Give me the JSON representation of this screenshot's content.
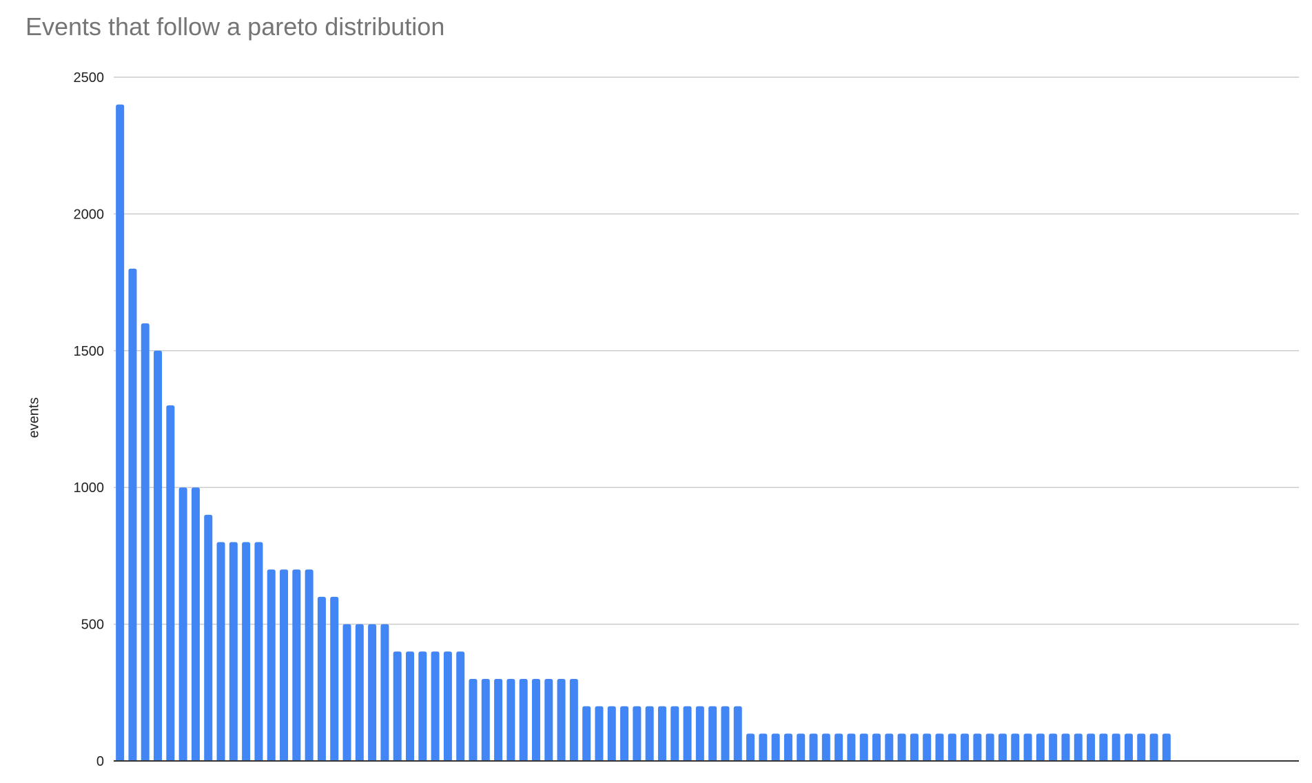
{
  "chart_data": {
    "type": "bar",
    "title": "Events that follow a pareto distribution",
    "xlabel": "",
    "ylabel": "events",
    "ylim": [
      0,
      2500
    ],
    "yticks": [
      "0",
      "500",
      "1000",
      "1500",
      "2000",
      "2500"
    ],
    "grid": true,
    "legend": "none",
    "bar_color": "#4285f4",
    "values": [
      2400,
      1800,
      1600,
      1500,
      1300,
      1000,
      1000,
      900,
      800,
      800,
      800,
      800,
      700,
      700,
      700,
      700,
      600,
      600,
      500,
      500,
      500,
      500,
      400,
      400,
      400,
      400,
      400,
      400,
      300,
      300,
      300,
      300,
      300,
      300,
      300,
      300,
      300,
      200,
      200,
      200,
      200,
      200,
      200,
      200,
      200,
      200,
      200,
      200,
      200,
      200,
      100,
      100,
      100,
      100,
      100,
      100,
      100,
      100,
      100,
      100,
      100,
      100,
      100,
      100,
      100,
      100,
      100,
      100,
      100,
      100,
      100,
      100,
      100,
      100,
      100,
      100,
      100,
      100,
      100,
      100,
      100,
      100,
      100,
      100,
      null,
      null,
      null,
      null,
      null,
      null,
      null,
      null,
      null,
      null
    ]
  }
}
